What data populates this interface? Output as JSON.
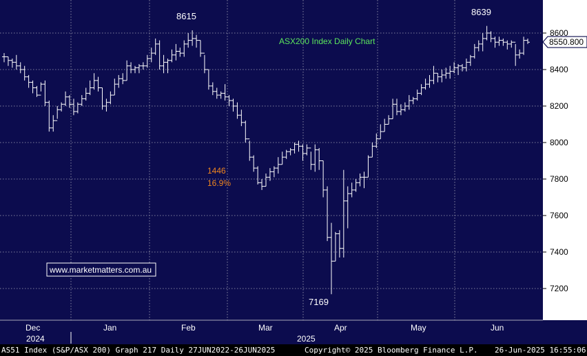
{
  "chart_data": {
    "type": "bar",
    "subtype": "ohlc",
    "title": "ASX200 Index Daily Chart",
    "y_axis": {
      "side": "right",
      "ticks": [
        7200,
        7400,
        7600,
        7800,
        8000,
        8200,
        8400,
        8600
      ],
      "range": [
        7070,
        8760
      ]
    },
    "last_value_label": "8550.800",
    "last_value": 8550.8,
    "x_axis": {
      "months": [
        "Dec",
        "Jan",
        "Feb",
        "Mar",
        "Apr",
        "May",
        "Jun"
      ],
      "years": [
        "2024",
        "2025"
      ]
    },
    "annotations": {
      "high_1": "8615",
      "high_2": "8639",
      "low": "7169",
      "move_points": "1446",
      "move_pct": "16.9%"
    },
    "watermark": "www.marketmatters.com.au",
    "bars_hlc": [
      [
        8490,
        8440,
        8470
      ],
      [
        8470,
        8420,
        8450
      ],
      [
        8460,
        8410,
        8440
      ],
      [
        8480,
        8400,
        8420
      ],
      [
        8440,
        8380,
        8400
      ],
      [
        8420,
        8340,
        8360
      ],
      [
        8370,
        8300,
        8330
      ],
      [
        8340,
        8270,
        8300
      ],
      [
        8310,
        8250,
        8260
      ],
      [
        8330,
        8280,
        8320
      ],
      [
        8340,
        8200,
        8220
      ],
      [
        8230,
        8060,
        8080
      ],
      [
        8150,
        8060,
        8120
      ],
      [
        8200,
        8130,
        8180
      ],
      [
        8220,
        8170,
        8210
      ],
      [
        8280,
        8200,
        8250
      ],
      [
        8260,
        8190,
        8210
      ],
      [
        8240,
        8150,
        8170
      ],
      [
        8220,
        8160,
        8210
      ],
      [
        8260,
        8200,
        8240
      ],
      [
        8300,
        8230,
        8270
      ],
      [
        8340,
        8260,
        8300
      ],
      [
        8380,
        8290,
        8340
      ],
      [
        8360,
        8280,
        8300
      ],
      [
        8300,
        8180,
        8200
      ],
      [
        8240,
        8170,
        8220
      ],
      [
        8280,
        8210,
        8260
      ],
      [
        8350,
        8260,
        8320
      ],
      [
        8370,
        8300,
        8350
      ],
      [
        8380,
        8320,
        8340
      ],
      [
        8450,
        8340,
        8420
      ],
      [
        8440,
        8380,
        8400
      ],
      [
        8420,
        8380,
        8410
      ],
      [
        8430,
        8380,
        8420
      ],
      [
        8440,
        8400,
        8420
      ],
      [
        8480,
        8410,
        8460
      ],
      [
        8520,
        8440,
        8490
      ],
      [
        8570,
        8480,
        8540
      ],
      [
        8560,
        8400,
        8420
      ],
      [
        8480,
        8380,
        8440
      ],
      [
        8460,
        8380,
        8450
      ],
      [
        8510,
        8440,
        8480
      ],
      [
        8540,
        8450,
        8500
      ],
      [
        8520,
        8470,
        8490
      ],
      [
        8560,
        8470,
        8540
      ],
      [
        8600,
        8520,
        8560
      ],
      [
        8615,
        8530,
        8570
      ],
      [
        8590,
        8520,
        8560
      ],
      [
        8560,
        8470,
        8490
      ],
      [
        8480,
        8380,
        8400
      ],
      [
        8400,
        8290,
        8310
      ],
      [
        8330,
        8260,
        8280
      ],
      [
        8300,
        8240,
        8260
      ],
      [
        8280,
        8240,
        8270
      ],
      [
        8320,
        8230,
        8250
      ],
      [
        8260,
        8200,
        8230
      ],
      [
        8240,
        8170,
        8200
      ],
      [
        8220,
        8130,
        8150
      ],
      [
        8180,
        8090,
        8110
      ],
      [
        8120,
        8000,
        8020
      ],
      [
        8010,
        7900,
        7920
      ],
      [
        7930,
        7840,
        7860
      ],
      [
        7870,
        7770,
        7780
      ],
      [
        7800,
        7740,
        7760
      ],
      [
        7830,
        7760,
        7810
      ],
      [
        7860,
        7790,
        7840
      ],
      [
        7870,
        7810,
        7860
      ],
      [
        7920,
        7830,
        7880
      ],
      [
        7950,
        7880,
        7920
      ],
      [
        7960,
        7910,
        7950
      ],
      [
        7970,
        7930,
        7960
      ],
      [
        8000,
        7940,
        7990
      ],
      [
        8010,
        7950,
        7980
      ],
      [
        7990,
        7900,
        7940
      ],
      [
        7990,
        7930,
        7970
      ],
      [
        7950,
        7850,
        7880
      ],
      [
        7990,
        7840,
        7960
      ],
      [
        7970,
        7850,
        7900
      ],
      [
        7900,
        7700,
        7740
      ],
      [
        7760,
        7460,
        7480
      ],
      [
        7560,
        7169,
        7350
      ],
      [
        7510,
        7350,
        7500
      ],
      [
        7520,
        7370,
        7420
      ],
      [
        7850,
        7370,
        7680
      ],
      [
        7760,
        7530,
        7720
      ],
      [
        7780,
        7700,
        7740
      ],
      [
        7800,
        7730,
        7780
      ],
      [
        7830,
        7760,
        7810
      ],
      [
        7840,
        7750,
        7810
      ],
      [
        7930,
        7810,
        7920
      ],
      [
        8000,
        7920,
        7980
      ],
      [
        8050,
        7970,
        8020
      ],
      [
        8100,
        8020,
        8060
      ],
      [
        8130,
        8060,
        8100
      ],
      [
        8150,
        8100,
        8130
      ],
      [
        8240,
        8130,
        8210
      ],
      [
        8240,
        8150,
        8170
      ],
      [
        8210,
        8150,
        8180
      ],
      [
        8220,
        8170,
        8200
      ],
      [
        8260,
        8180,
        8230
      ],
      [
        8250,
        8210,
        8240
      ],
      [
        8290,
        8230,
        8270
      ],
      [
        8320,
        8260,
        8300
      ],
      [
        8350,
        8290,
        8320
      ],
      [
        8370,
        8300,
        8340
      ],
      [
        8420,
        8320,
        8380
      ],
      [
        8380,
        8330,
        8360
      ],
      [
        8400,
        8330,
        8370
      ],
      [
        8410,
        8350,
        8380
      ],
      [
        8420,
        8350,
        8390
      ],
      [
        8440,
        8380,
        8410
      ],
      [
        8430,
        8370,
        8420
      ],
      [
        8430,
        8390,
        8410
      ],
      [
        8460,
        8390,
        8440
      ],
      [
        8480,
        8420,
        8470
      ],
      [
        8540,
        8460,
        8520
      ],
      [
        8560,
        8500,
        8540
      ],
      [
        8600,
        8500,
        8570
      ],
      [
        8639,
        8560,
        8600
      ],
      [
        8610,
        8550,
        8570
      ],
      [
        8580,
        8520,
        8550
      ],
      [
        8580,
        8530,
        8560
      ],
      [
        8570,
        8530,
        8550
      ],
      [
        8560,
        8510,
        8540
      ],
      [
        8560,
        8520,
        8550
      ],
      [
        8540,
        8420,
        8480
      ],
      [
        8510,
        8460,
        8490
      ],
      [
        8580,
        8480,
        8560
      ],
      [
        8570,
        8540,
        8550
      ]
    ]
  },
  "footer": {
    "left": "AS51 Index (S&P/ASX 200) Graph 217  Daily 27JUN2022-26JUN2025",
    "center": "Copyright© 2025 Bloomberg Finance L.P.",
    "right": "26-Jun-2025 16:55:06"
  },
  "colors": {
    "background": "#0c0c4e",
    "bars": "#ffffff",
    "grid": "#a8a8b8",
    "axis_panel": "#ffffff",
    "title": "#5ce65c",
    "move_text": "#f0861e",
    "label_text": "#ffffff",
    "footer_bg": "#000000",
    "watermark_border": "#ffffff"
  }
}
